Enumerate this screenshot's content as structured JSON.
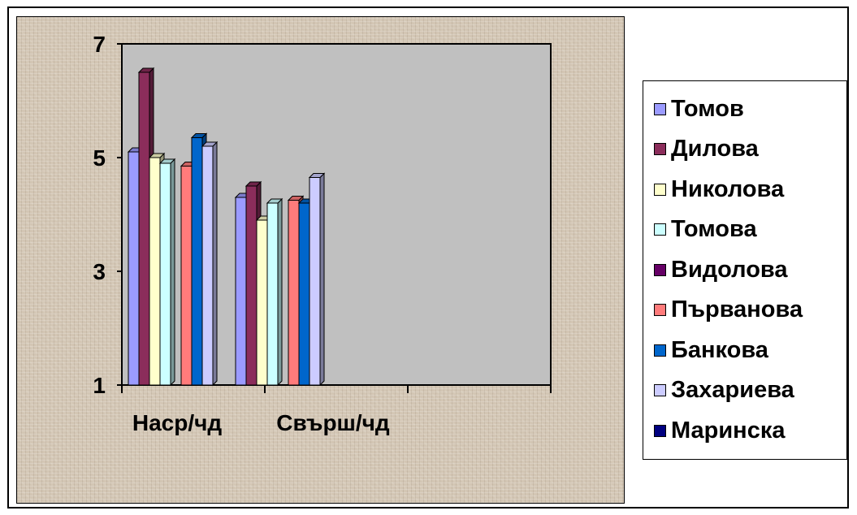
{
  "chart_data": {
    "type": "bar",
    "categories": [
      "Наср/чд",
      "Свърш/чд",
      ""
    ],
    "series": [
      {
        "name": "Томов",
        "color": "#9b9bff",
        "values": [
          5.1,
          4.3,
          null
        ]
      },
      {
        "name": "Дилова",
        "color": "#8b2d5b",
        "values": [
          6.5,
          4.5,
          null
        ]
      },
      {
        "name": "Николова",
        "color": "#ffffcc",
        "values": [
          5.0,
          3.9,
          null
        ]
      },
      {
        "name": "Томова",
        "color": "#ccffff",
        "values": [
          4.9,
          4.2,
          null
        ]
      },
      {
        "name": "Видолова",
        "color": "#660066",
        "values": [
          null,
          null,
          null
        ]
      },
      {
        "name": "Първанова",
        "color": "#ff7b7b",
        "values": [
          4.85,
          4.25,
          null
        ]
      },
      {
        "name": "Банкова",
        "color": "#0066cc",
        "values": [
          5.35,
          4.2,
          null
        ]
      },
      {
        "name": "Захариева",
        "color": "#ccccff",
        "values": [
          5.2,
          4.65,
          null
        ]
      },
      {
        "name": "Маринска",
        "color": "#000080",
        "values": [
          null,
          null,
          null
        ]
      }
    ],
    "yticks": [
      "1",
      "3",
      "5",
      "7"
    ],
    "ylim": [
      1,
      7
    ],
    "plot_background": "#c0c0c0",
    "legend_position": "right"
  }
}
